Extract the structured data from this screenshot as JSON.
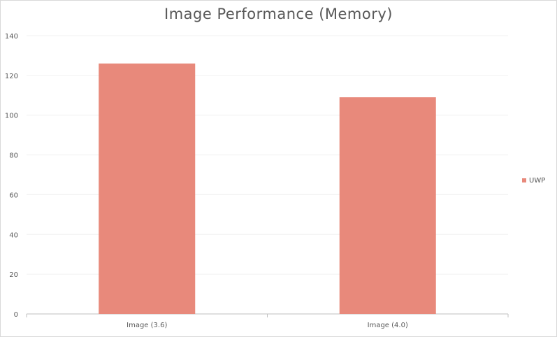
{
  "chart_data": {
    "type": "bar",
    "title": "Image Performance (Memory)",
    "categories": [
      "Image (3.6)",
      "Image (4.0)"
    ],
    "series": [
      {
        "name": "UWP",
        "values": [
          126,
          109
        ],
        "color": "#e8897b"
      }
    ],
    "ylim": [
      0,
      140
    ],
    "yticks": [
      0,
      20,
      40,
      60,
      80,
      100,
      120,
      140
    ],
    "grid": true,
    "legend_position": "right"
  }
}
